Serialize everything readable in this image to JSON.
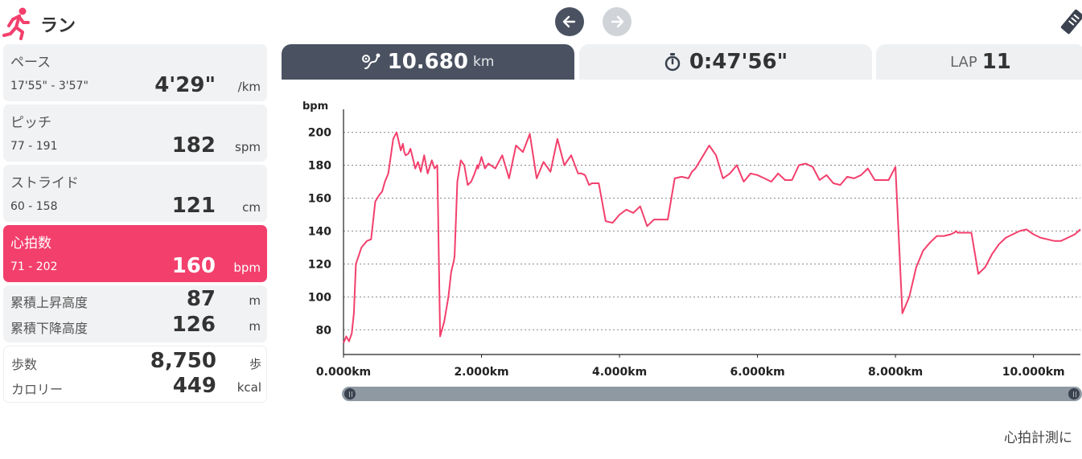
{
  "header": {
    "title": "ラン",
    "accent_color": "#f33f6c",
    "icons": {
      "activity": "running-figure-icon",
      "prev": "arrow-left-icon",
      "next": "arrow-right-icon",
      "edit": "tag-edit-icon"
    }
  },
  "stats": {
    "pace": {
      "label": "ペース",
      "range": "17'55\" - 3'57\"",
      "value": "4'29\"",
      "unit": "/km"
    },
    "pitch": {
      "label": "ピッチ",
      "range": "77 - 191",
      "value": "182",
      "unit": "spm"
    },
    "stride": {
      "label": "ストライド",
      "range": "60 - 158",
      "value": "121",
      "unit": "cm"
    },
    "heart_rate": {
      "label": "心拍数",
      "range": "71 - 202",
      "value": "160",
      "unit": "bpm"
    },
    "elevation": {
      "ascent_label": "累積上昇高度",
      "ascent_value": "87",
      "ascent_unit": "m",
      "descent_label": "累積下降高度",
      "descent_value": "126",
      "descent_unit": "m"
    },
    "steps": {
      "steps_label": "歩数",
      "steps_value": "8,750",
      "steps_unit": "歩",
      "calories_label": "カロリー",
      "calories_value": "449",
      "calories_unit": "kcal"
    }
  },
  "tabs": {
    "distance": {
      "value": "10.680",
      "unit": "km",
      "icon": "route-pin-icon"
    },
    "time": {
      "value": "0:47'56\"",
      "icon": "stopwatch-icon"
    },
    "lap": {
      "label": "LAP",
      "value": "11"
    }
  },
  "footer": {
    "text": "心拍計測に"
  },
  "chart_data": {
    "type": "line",
    "ylabel": "bpm",
    "xlabel": "",
    "x_tick_labels": [
      "0.000km",
      "2.000km",
      "4.000km",
      "6.000km",
      "8.000km",
      "10.000km"
    ],
    "x_ticks": [
      0,
      2,
      4,
      6,
      8,
      10
    ],
    "y_ticks": [
      80,
      100,
      120,
      140,
      160,
      180,
      200
    ],
    "xlim": [
      0,
      10.68
    ],
    "ylim": [
      65,
      212
    ],
    "grid": "horizontal-dashed",
    "line_color": "#f33f6c",
    "series": [
      {
        "x": [
          0,
          0.04,
          0.08,
          0.12,
          0.15,
          0.18,
          0.22,
          0.26,
          0.3,
          0.34,
          0.4,
          0.46,
          0.52,
          0.56,
          0.6,
          0.65,
          0.72,
          0.77,
          0.83,
          0.86,
          0.88,
          0.9,
          0.94,
          0.97,
          1.0,
          1.04,
          1.08,
          1.12,
          1.17,
          1.22,
          1.28,
          1.32,
          1.36,
          1.4,
          1.46,
          1.52,
          1.56,
          1.6,
          1.61,
          1.65,
          1.7,
          1.75,
          1.8,
          1.85,
          1.9,
          1.94,
          1.95,
          1.98,
          2.0,
          2.05,
          2.1,
          2.2,
          2.3,
          2.4,
          2.5,
          2.6,
          2.7,
          2.8,
          2.9,
          3.0,
          3.1,
          3.2,
          3.3,
          3.4,
          3.45,
          3.5,
          3.56,
          3.6,
          3.7,
          3.8,
          3.9,
          4.0,
          4.1,
          4.2,
          4.3,
          4.4,
          4.5,
          4.6,
          4.65,
          4.7,
          4.8,
          4.9,
          5.0,
          5.05,
          5.1,
          5.2,
          5.3,
          5.4,
          5.5,
          5.6,
          5.7,
          5.8,
          5.9,
          6.0,
          6.1,
          6.2,
          6.3,
          6.4,
          6.5,
          6.6,
          6.7,
          6.8,
          6.9,
          7.0,
          7.1,
          7.2,
          7.3,
          7.4,
          7.5,
          7.6,
          7.7,
          7.8,
          7.9,
          8.0,
          8.1,
          8.2,
          8.3,
          8.4,
          8.5,
          8.6,
          8.7,
          8.8,
          8.85,
          8.88,
          8.9,
          8.95,
          9.0,
          9.05,
          9.1,
          9.2,
          9.3,
          9.4,
          9.5,
          9.6,
          9.7,
          9.8,
          9.9,
          10.0,
          10.1,
          10.2,
          10.3,
          10.4,
          10.5,
          10.6,
          10.68
        ],
        "y": [
          72,
          76,
          73,
          78,
          90,
          120,
          125,
          130,
          132,
          134,
          135,
          158,
          162,
          164,
          170,
          175,
          196,
          200,
          189,
          193,
          188,
          186,
          187,
          190,
          185,
          178,
          182,
          176,
          186,
          175,
          183,
          178,
          180,
          76,
          85,
          100,
          115,
          122,
          125,
          170,
          183,
          180,
          168,
          170,
          175,
          180,
          178,
          182,
          185,
          178,
          181,
          178,
          186,
          172,
          192,
          188,
          199,
          172,
          182,
          176,
          196,
          180,
          186,
          175,
          175,
          174,
          168,
          169,
          169,
          146,
          145,
          150,
          153,
          151,
          155,
          143,
          147,
          147,
          147,
          147,
          172,
          173,
          172,
          176,
          178,
          185,
          192,
          186,
          172,
          175,
          180,
          170,
          175,
          174,
          172,
          170,
          175,
          171,
          171,
          180,
          181,
          179,
          171,
          174,
          169,
          168,
          173,
          172,
          174,
          178,
          171,
          171,
          171,
          179,
          90,
          100,
          118,
          128,
          133,
          137,
          137,
          138,
          139,
          140,
          139,
          139,
          139,
          139,
          139,
          114,
          118,
          126,
          132,
          136,
          138,
          140,
          141,
          138,
          136,
          135,
          134,
          134,
          136,
          138,
          141
        ]
      }
    ]
  }
}
